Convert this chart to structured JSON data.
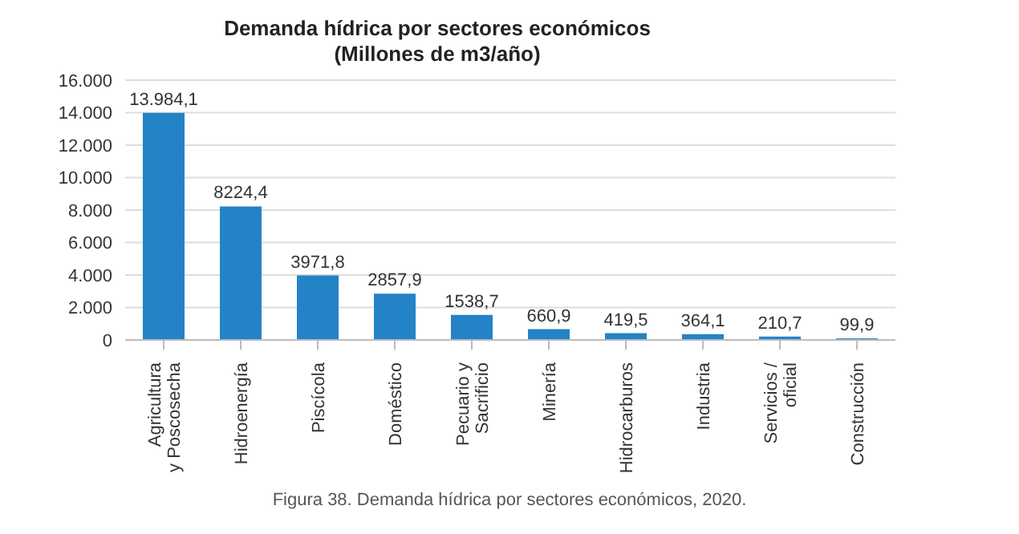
{
  "chart_data": {
    "type": "bar",
    "title": "Demanda hídrica por sectores económicos",
    "subtitle": "(Millones de m3/año)",
    "categories": [
      "Agricultura y Poscosecha",
      "Hidroenergía",
      "Piscícola",
      "Doméstico",
      "Pecuario y Sacrificio",
      "Minería",
      "Hidrocarburos",
      "Industria",
      "Servicios / oficial",
      "Construcción"
    ],
    "values": [
      13984.1,
      8224.4,
      3971.8,
      2857.9,
      1538.7,
      660.9,
      419.5,
      364.1,
      210.7,
      99.9
    ],
    "value_labels": [
      "13.984,1",
      "8224,4",
      "3971,8",
      "2857,9",
      "1538,7",
      "660,9",
      "419,5",
      "364,1",
      "210,7",
      "99,9"
    ],
    "color": "#2383c6",
    "ylim": [
      0,
      16000
    ],
    "yticks": [
      {
        "value": 0,
        "label": "0"
      },
      {
        "value": 2000,
        "label": "2.000"
      },
      {
        "value": 4000,
        "label": "4.000"
      },
      {
        "value": 6000,
        "label": "6.000"
      },
      {
        "value": 8000,
        "label": "8.000"
      },
      {
        "value": 10000,
        "label": "10.000"
      },
      {
        "value": 12000,
        "label": "12.000"
      },
      {
        "value": 14000,
        "label": "14.000"
      },
      {
        "value": 16000,
        "label": "16.000"
      }
    ],
    "grid": "y",
    "annotations": [
      "Figura 38. Demanda hídrica por sectores económicos, 2020."
    ]
  }
}
